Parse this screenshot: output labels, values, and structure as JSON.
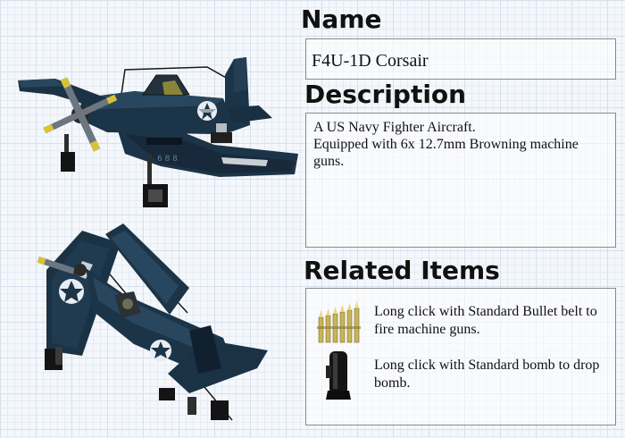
{
  "name": {
    "heading": "Name",
    "value": "F4U-1D Corsair"
  },
  "description": {
    "heading": "Description",
    "lines": [
      "A US Navy Fighter Aircraft.",
      "Equipped with 6x 12.7mm Browning machine guns."
    ]
  },
  "related": {
    "heading": "Related Items",
    "items": [
      {
        "icon": "bullet-belt-icon",
        "text": "Long click with Standard Bullet belt to fire machine guns."
      },
      {
        "icon": "bomb-icon",
        "text": "Long click with Standard bomb to drop bomb."
      }
    ]
  },
  "colors": {
    "aircraft_body": "#1c3447",
    "aircraft_dark": "#10202e",
    "insignia": "#e8edf2",
    "propeller_tip": "#d8c23a",
    "bullet_brass": "#c8b45a",
    "bomb": "#151515"
  }
}
